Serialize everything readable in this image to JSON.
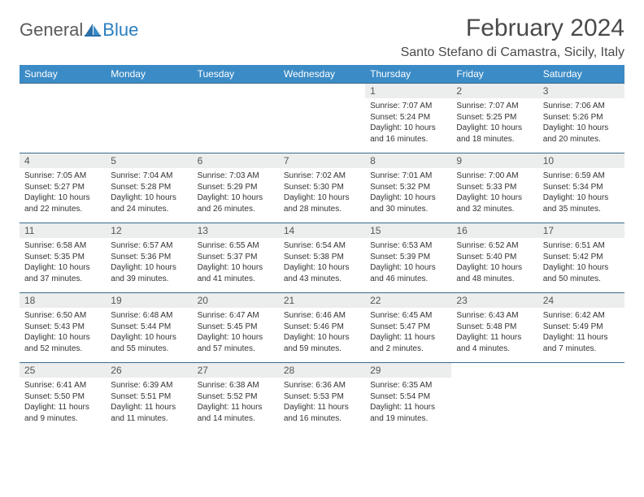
{
  "brand": {
    "name1": "General",
    "name2": "Blue"
  },
  "title": "February 2024",
  "location": "Santo Stefano di Camastra, Sicily, Italy",
  "colors": {
    "header_bg": "#3b8bc6",
    "header_fg": "#ffffff",
    "daynum_bg": "#eceded",
    "cell_border": "#3b6a8f",
    "title_fg": "#4a4a4a",
    "logo_grey": "#5a5a5a",
    "logo_blue": "#2a7fbf"
  },
  "weekdays": [
    "Sunday",
    "Monday",
    "Tuesday",
    "Wednesday",
    "Thursday",
    "Friday",
    "Saturday"
  ],
  "weeks": [
    [
      null,
      null,
      null,
      null,
      {
        "n": "1",
        "sr": "Sunrise: 7:07 AM",
        "ss": "Sunset: 5:24 PM",
        "dl": "Daylight: 10 hours and 16 minutes."
      },
      {
        "n": "2",
        "sr": "Sunrise: 7:07 AM",
        "ss": "Sunset: 5:25 PM",
        "dl": "Daylight: 10 hours and 18 minutes."
      },
      {
        "n": "3",
        "sr": "Sunrise: 7:06 AM",
        "ss": "Sunset: 5:26 PM",
        "dl": "Daylight: 10 hours and 20 minutes."
      }
    ],
    [
      {
        "n": "4",
        "sr": "Sunrise: 7:05 AM",
        "ss": "Sunset: 5:27 PM",
        "dl": "Daylight: 10 hours and 22 minutes."
      },
      {
        "n": "5",
        "sr": "Sunrise: 7:04 AM",
        "ss": "Sunset: 5:28 PM",
        "dl": "Daylight: 10 hours and 24 minutes."
      },
      {
        "n": "6",
        "sr": "Sunrise: 7:03 AM",
        "ss": "Sunset: 5:29 PM",
        "dl": "Daylight: 10 hours and 26 minutes."
      },
      {
        "n": "7",
        "sr": "Sunrise: 7:02 AM",
        "ss": "Sunset: 5:30 PM",
        "dl": "Daylight: 10 hours and 28 minutes."
      },
      {
        "n": "8",
        "sr": "Sunrise: 7:01 AM",
        "ss": "Sunset: 5:32 PM",
        "dl": "Daylight: 10 hours and 30 minutes."
      },
      {
        "n": "9",
        "sr": "Sunrise: 7:00 AM",
        "ss": "Sunset: 5:33 PM",
        "dl": "Daylight: 10 hours and 32 minutes."
      },
      {
        "n": "10",
        "sr": "Sunrise: 6:59 AM",
        "ss": "Sunset: 5:34 PM",
        "dl": "Daylight: 10 hours and 35 minutes."
      }
    ],
    [
      {
        "n": "11",
        "sr": "Sunrise: 6:58 AM",
        "ss": "Sunset: 5:35 PM",
        "dl": "Daylight: 10 hours and 37 minutes."
      },
      {
        "n": "12",
        "sr": "Sunrise: 6:57 AM",
        "ss": "Sunset: 5:36 PM",
        "dl": "Daylight: 10 hours and 39 minutes."
      },
      {
        "n": "13",
        "sr": "Sunrise: 6:55 AM",
        "ss": "Sunset: 5:37 PM",
        "dl": "Daylight: 10 hours and 41 minutes."
      },
      {
        "n": "14",
        "sr": "Sunrise: 6:54 AM",
        "ss": "Sunset: 5:38 PM",
        "dl": "Daylight: 10 hours and 43 minutes."
      },
      {
        "n": "15",
        "sr": "Sunrise: 6:53 AM",
        "ss": "Sunset: 5:39 PM",
        "dl": "Daylight: 10 hours and 46 minutes."
      },
      {
        "n": "16",
        "sr": "Sunrise: 6:52 AM",
        "ss": "Sunset: 5:40 PM",
        "dl": "Daylight: 10 hours and 48 minutes."
      },
      {
        "n": "17",
        "sr": "Sunrise: 6:51 AM",
        "ss": "Sunset: 5:42 PM",
        "dl": "Daylight: 10 hours and 50 minutes."
      }
    ],
    [
      {
        "n": "18",
        "sr": "Sunrise: 6:50 AM",
        "ss": "Sunset: 5:43 PM",
        "dl": "Daylight: 10 hours and 52 minutes."
      },
      {
        "n": "19",
        "sr": "Sunrise: 6:48 AM",
        "ss": "Sunset: 5:44 PM",
        "dl": "Daylight: 10 hours and 55 minutes."
      },
      {
        "n": "20",
        "sr": "Sunrise: 6:47 AM",
        "ss": "Sunset: 5:45 PM",
        "dl": "Daylight: 10 hours and 57 minutes."
      },
      {
        "n": "21",
        "sr": "Sunrise: 6:46 AM",
        "ss": "Sunset: 5:46 PM",
        "dl": "Daylight: 10 hours and 59 minutes."
      },
      {
        "n": "22",
        "sr": "Sunrise: 6:45 AM",
        "ss": "Sunset: 5:47 PM",
        "dl": "Daylight: 11 hours and 2 minutes."
      },
      {
        "n": "23",
        "sr": "Sunrise: 6:43 AM",
        "ss": "Sunset: 5:48 PM",
        "dl": "Daylight: 11 hours and 4 minutes."
      },
      {
        "n": "24",
        "sr": "Sunrise: 6:42 AM",
        "ss": "Sunset: 5:49 PM",
        "dl": "Daylight: 11 hours and 7 minutes."
      }
    ],
    [
      {
        "n": "25",
        "sr": "Sunrise: 6:41 AM",
        "ss": "Sunset: 5:50 PM",
        "dl": "Daylight: 11 hours and 9 minutes."
      },
      {
        "n": "26",
        "sr": "Sunrise: 6:39 AM",
        "ss": "Sunset: 5:51 PM",
        "dl": "Daylight: 11 hours and 11 minutes."
      },
      {
        "n": "27",
        "sr": "Sunrise: 6:38 AM",
        "ss": "Sunset: 5:52 PM",
        "dl": "Daylight: 11 hours and 14 minutes."
      },
      {
        "n": "28",
        "sr": "Sunrise: 6:36 AM",
        "ss": "Sunset: 5:53 PM",
        "dl": "Daylight: 11 hours and 16 minutes."
      },
      {
        "n": "29",
        "sr": "Sunrise: 6:35 AM",
        "ss": "Sunset: 5:54 PM",
        "dl": "Daylight: 11 hours and 19 minutes."
      },
      null,
      null
    ]
  ]
}
